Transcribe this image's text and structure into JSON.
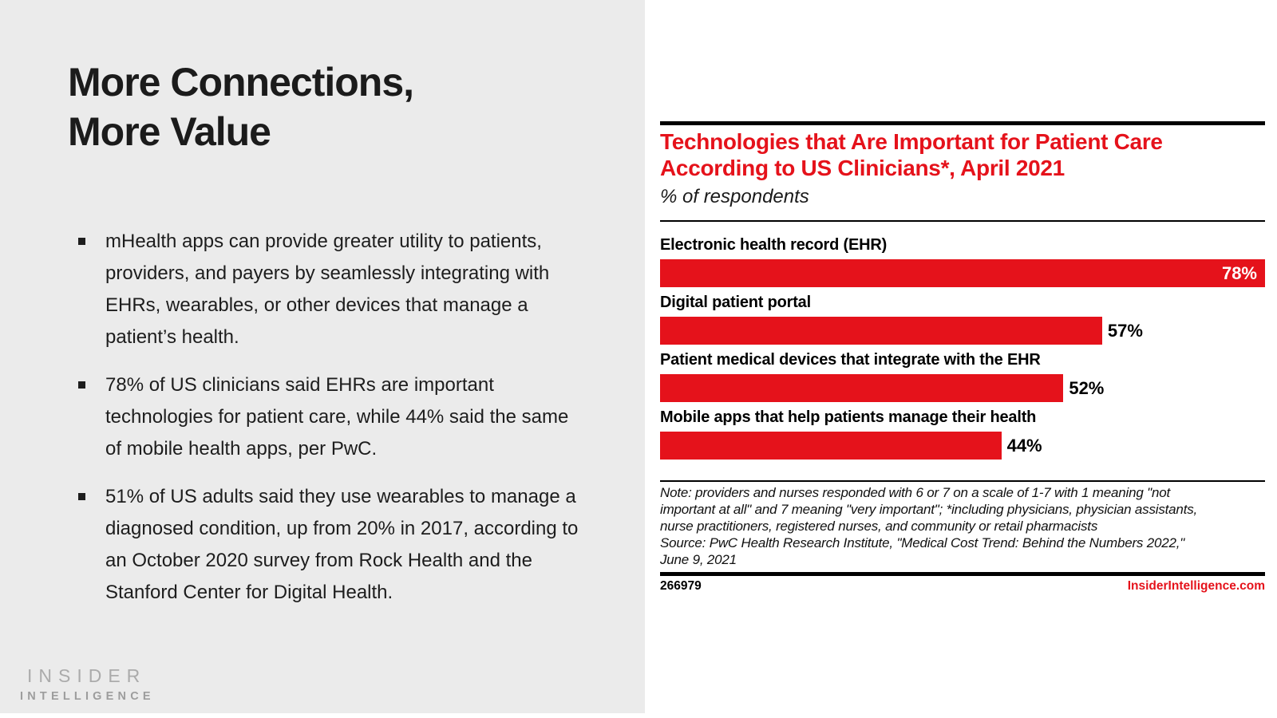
{
  "left_panel": {
    "title_lines": [
      "More Connections,",
      "More Value"
    ],
    "bullets": [
      "mHealth apps can provide greater utility to patients, providers, and payers by seamlessly integrating with EHRs, wearables, or other devices that manage a patient’s health.",
      "78% of US clinicians said EHRs are important technologies for patient care, while 44% said the same of mobile health apps, per PwC.",
      "51% of US adults said they use wearables to manage a diagnosed condition, up from 20% in 2017, according to an October 2020 survey from Rock Health and the Stanford Center for Digital Health."
    ],
    "logo": {
      "line1": "INSIDER",
      "line2": "INTELLIGENCE"
    }
  },
  "chart": {
    "title_lines": [
      "Technologies that Are Important for Patient Care",
      "According to US Clinicians*, April 2021"
    ],
    "subtitle": "% of respondents",
    "note_lines": [
      "Note: providers and nurses responded with 6 or 7 on a scale of 1-7 with 1 meaning \"not",
      "important at all\" and 7 meaning \"very important\"; *including physicians, physician assistants,",
      "nurse practitioners, registered nurses, and community or retail pharmacists",
      "Source: PwC Health Research Institute, \"Medical Cost Trend: Behind the Numbers 2022,\"",
      "June 9, 2021"
    ],
    "footer": {
      "chart_id": "266979",
      "website": "InsiderIntelligence.com"
    }
  },
  "chart_data": {
    "type": "bar",
    "orientation": "horizontal",
    "title": "Technologies that Are Important for Patient Care According to US Clinicians*, April 2021",
    "subtitle": "% of respondents",
    "categories": [
      "Electronic health record (EHR)",
      "Digital patient portal",
      "Patient medical devices that integrate with the EHR",
      "Mobile apps that help patients manage their health"
    ],
    "values": [
      78,
      57,
      52,
      44
    ],
    "value_suffix": "%",
    "xlim": [
      0,
      78
    ],
    "grid": false,
    "legend": false,
    "bar_color": "#e5121b"
  },
  "colors": {
    "accent_red": "#e5121b",
    "panel_gray": "#ebebeb",
    "text_black": "#1b1b1b",
    "logo_gray": "#a6a6a6"
  }
}
